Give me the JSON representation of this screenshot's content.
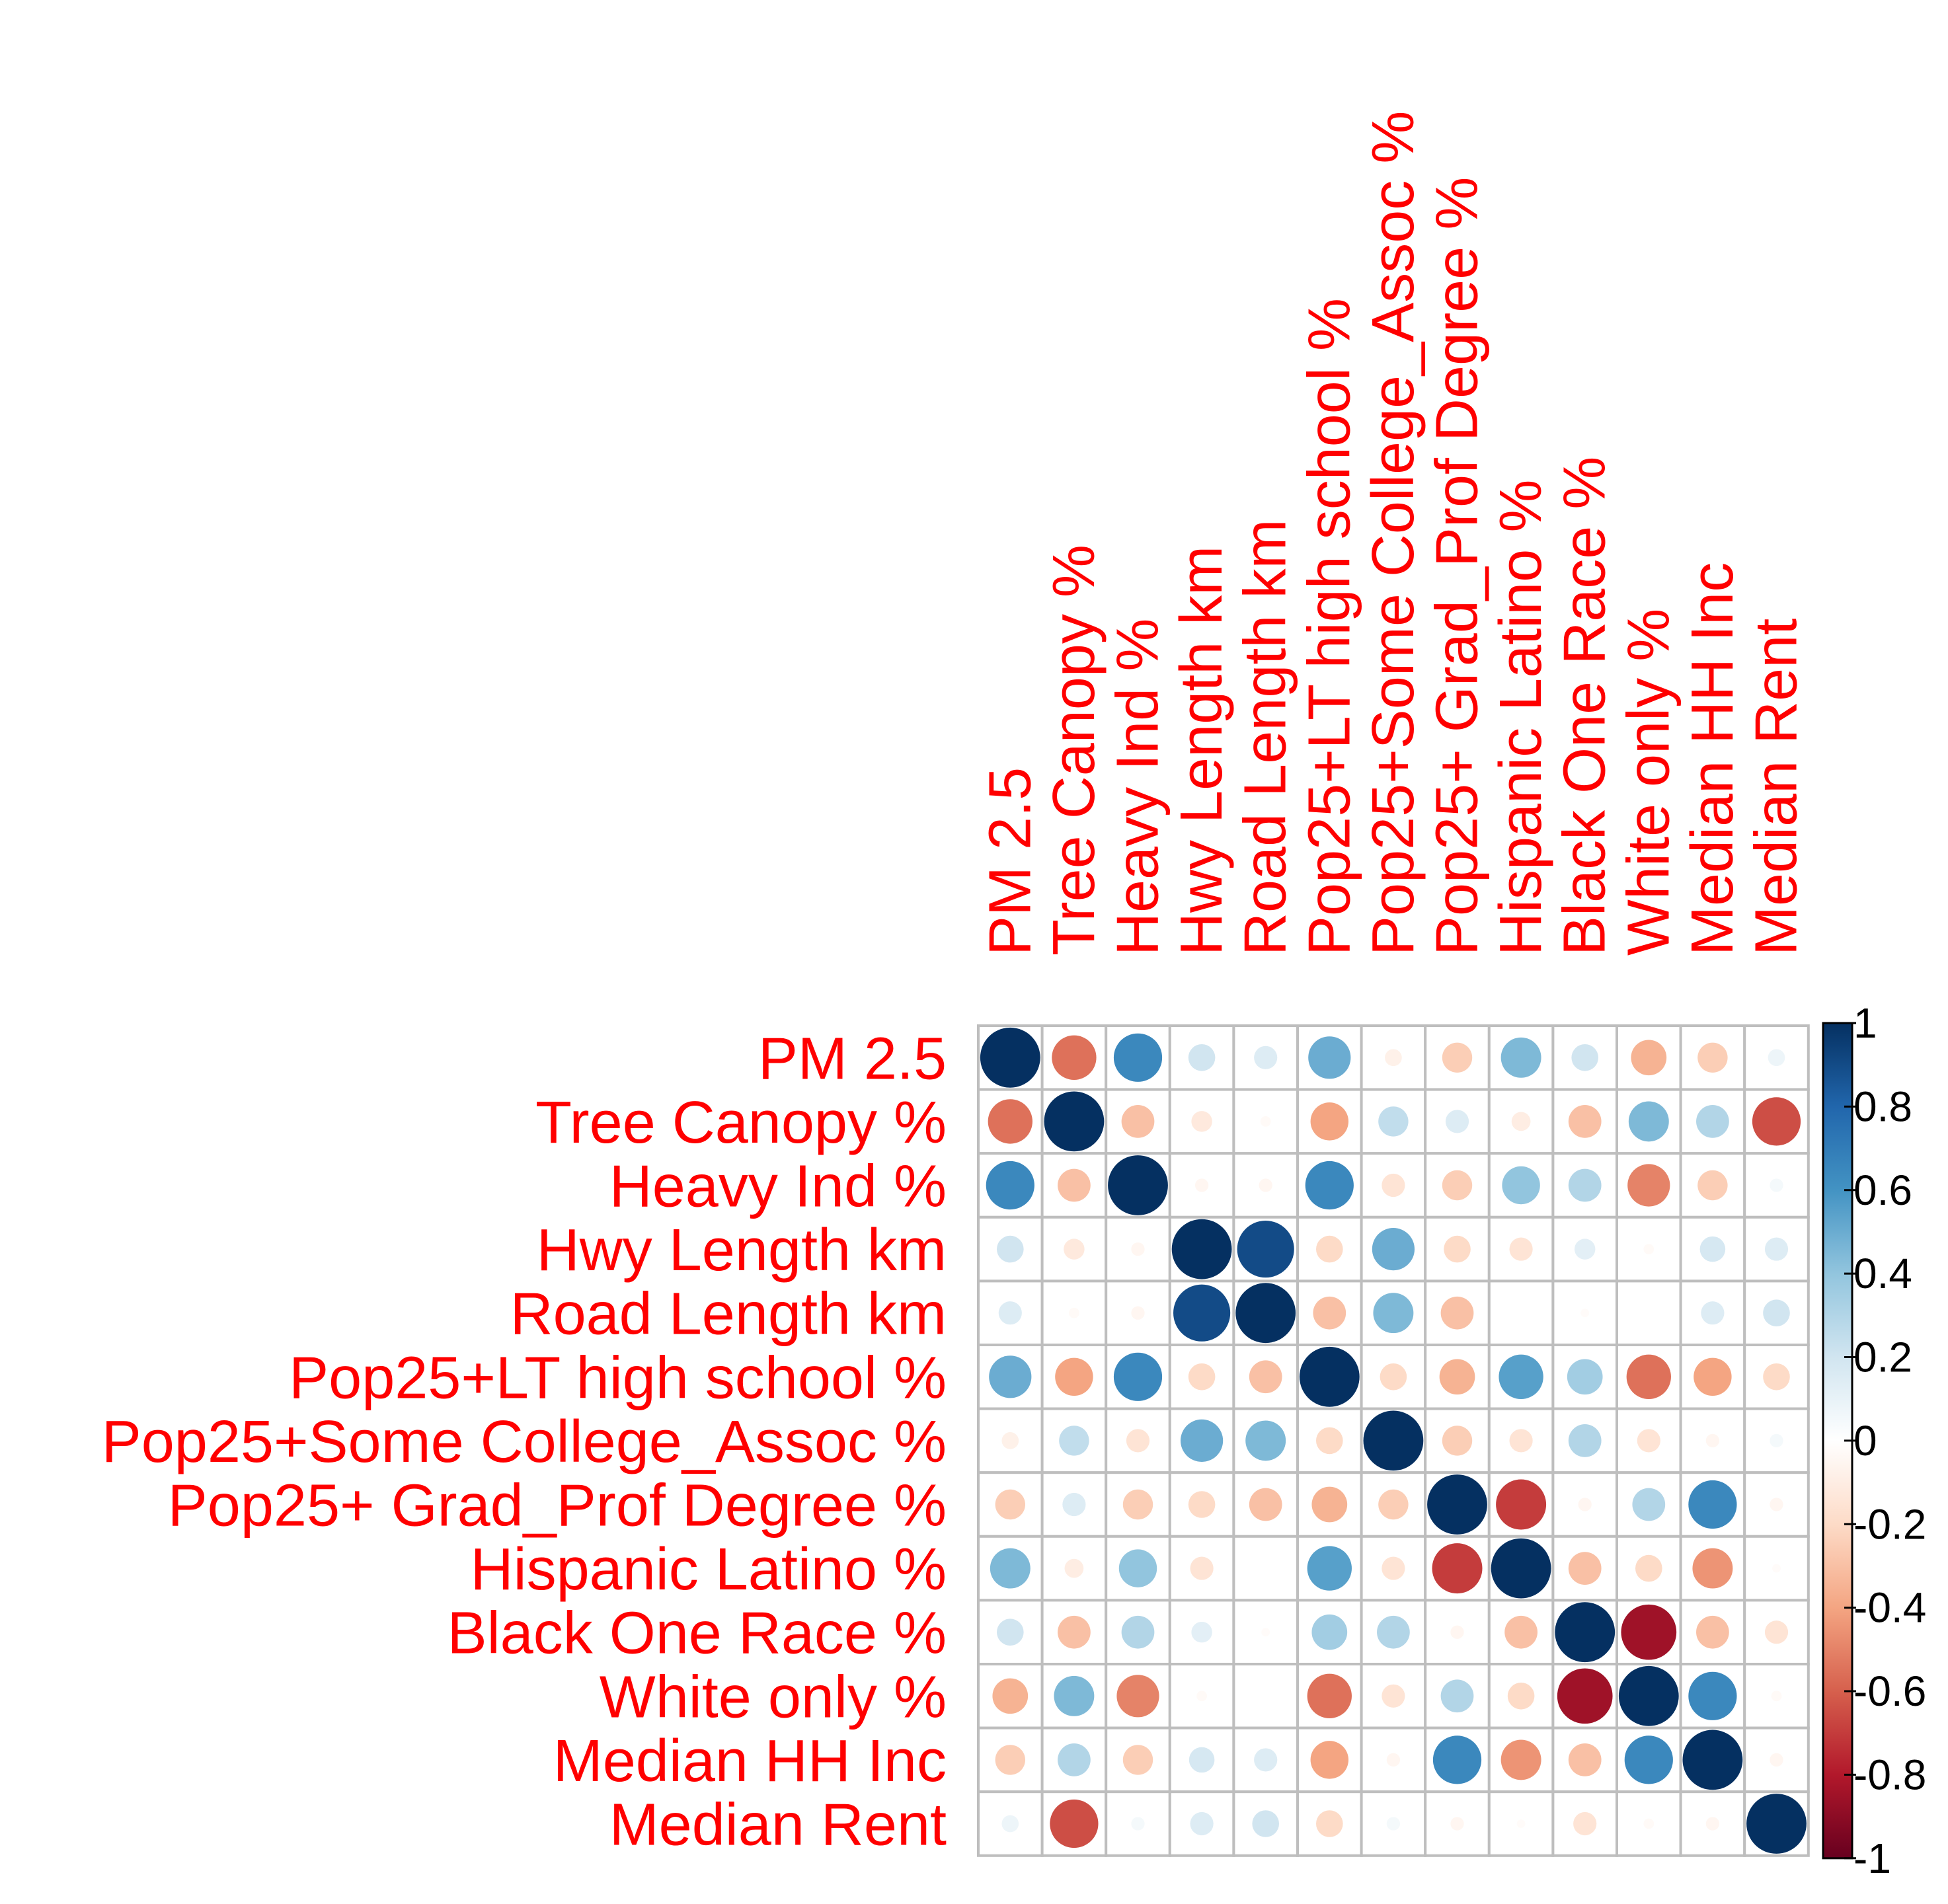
{
  "chart_data": {
    "type": "correlation-matrix",
    "title": "",
    "variables": [
      "PM 2.5",
      "Tree Canopy %",
      "Heavy Ind %",
      "Hwy Length km",
      "Road Length km",
      "Pop25+LT high school %",
      "Pop25+Some College_Assoc %",
      "Pop25+ Grad_Prof Degree %",
      "Hispanic Latino %",
      "Black One Race %",
      "White only %",
      "Median HH Inc",
      "Median Rent"
    ],
    "matrix": [
      [
        1.0,
        -0.55,
        0.65,
        0.2,
        0.15,
        0.5,
        -0.08,
        -0.25,
        0.45,
        0.2,
        -0.35,
        -0.25,
        0.08
      ],
      [
        -0.55,
        1.0,
        -0.3,
        -0.12,
        -0.03,
        -0.4,
        0.25,
        0.15,
        -0.1,
        -0.3,
        0.45,
        0.3,
        -0.65
      ],
      [
        0.65,
        -0.3,
        1.0,
        -0.05,
        -0.05,
        0.65,
        -0.15,
        -0.25,
        0.4,
        0.3,
        -0.5,
        -0.25,
        0.05
      ],
      [
        0.2,
        -0.12,
        -0.05,
        1.0,
        0.9,
        -0.2,
        0.5,
        -0.2,
        -0.15,
        0.12,
        -0.03,
        0.18,
        0.15
      ],
      [
        0.15,
        -0.03,
        -0.05,
        0.9,
        1.0,
        -0.3,
        0.45,
        -0.3,
        0.0,
        -0.02,
        0.0,
        0.15,
        0.2
      ],
      [
        0.5,
        -0.4,
        0.65,
        -0.2,
        -0.3,
        1.0,
        -0.2,
        -0.35,
        0.55,
        0.35,
        -0.55,
        -0.4,
        -0.2
      ],
      [
        -0.08,
        0.25,
        -0.15,
        0.5,
        0.45,
        -0.2,
        1.0,
        -0.25,
        -0.15,
        0.3,
        -0.15,
        -0.05,
        0.05
      ],
      [
        -0.25,
        0.15,
        -0.25,
        -0.2,
        -0.3,
        -0.35,
        -0.25,
        1.0,
        -0.7,
        -0.05,
        0.3,
        0.65,
        -0.05
      ],
      [
        0.45,
        -0.1,
        0.4,
        -0.15,
        0.0,
        0.55,
        -0.15,
        -0.7,
        1.0,
        -0.3,
        -0.2,
        -0.45,
        -0.02
      ],
      [
        0.2,
        -0.3,
        0.3,
        0.12,
        -0.02,
        0.35,
        0.3,
        -0.05,
        -0.3,
        1.0,
        -0.85,
        -0.3,
        -0.15
      ],
      [
        -0.35,
        0.45,
        -0.5,
        -0.03,
        0.0,
        -0.55,
        -0.15,
        0.3,
        -0.2,
        -0.85,
        1.0,
        0.65,
        -0.03
      ],
      [
        -0.25,
        0.3,
        -0.25,
        0.18,
        0.15,
        -0.4,
        -0.05,
        0.65,
        -0.45,
        -0.3,
        0.65,
        1.0,
        -0.05
      ],
      [
        0.08,
        -0.65,
        0.05,
        0.15,
        0.2,
        -0.2,
        0.05,
        -0.05,
        -0.02,
        -0.15,
        -0.03,
        -0.05,
        1.0
      ]
    ],
    "color_scale": {
      "range": [
        -1,
        1
      ],
      "ticks": [
        "1",
        "0.8",
        "0.6",
        "0.4",
        "0.2",
        "0",
        "-0.2",
        "-0.4",
        "-0.6",
        "-0.8",
        "-1"
      ],
      "tick_values": [
        1,
        0.8,
        0.6,
        0.4,
        0.2,
        0,
        -0.2,
        -0.4,
        -0.6,
        -0.8,
        -1
      ],
      "stops": [
        {
          "v": -1.0,
          "c": "#67001F"
        },
        {
          "v": -0.8,
          "c": "#B2182B"
        },
        {
          "v": -0.6,
          "c": "#D6604D"
        },
        {
          "v": -0.4,
          "c": "#F4A582"
        },
        {
          "v": -0.2,
          "c": "#FDDBC7"
        },
        {
          "v": 0.0,
          "c": "#FFFFFF"
        },
        {
          "v": 0.2,
          "c": "#D1E5F0"
        },
        {
          "v": 0.4,
          "c": "#92C5DE"
        },
        {
          "v": 0.6,
          "c": "#4393C3"
        },
        {
          "v": 0.8,
          "c": "#2166AC"
        },
        {
          "v": 1.0,
          "c": "#053061"
        }
      ]
    },
    "label_color": "#FF0000",
    "grid_color": "#BEBEBE",
    "legend_position": "right"
  }
}
